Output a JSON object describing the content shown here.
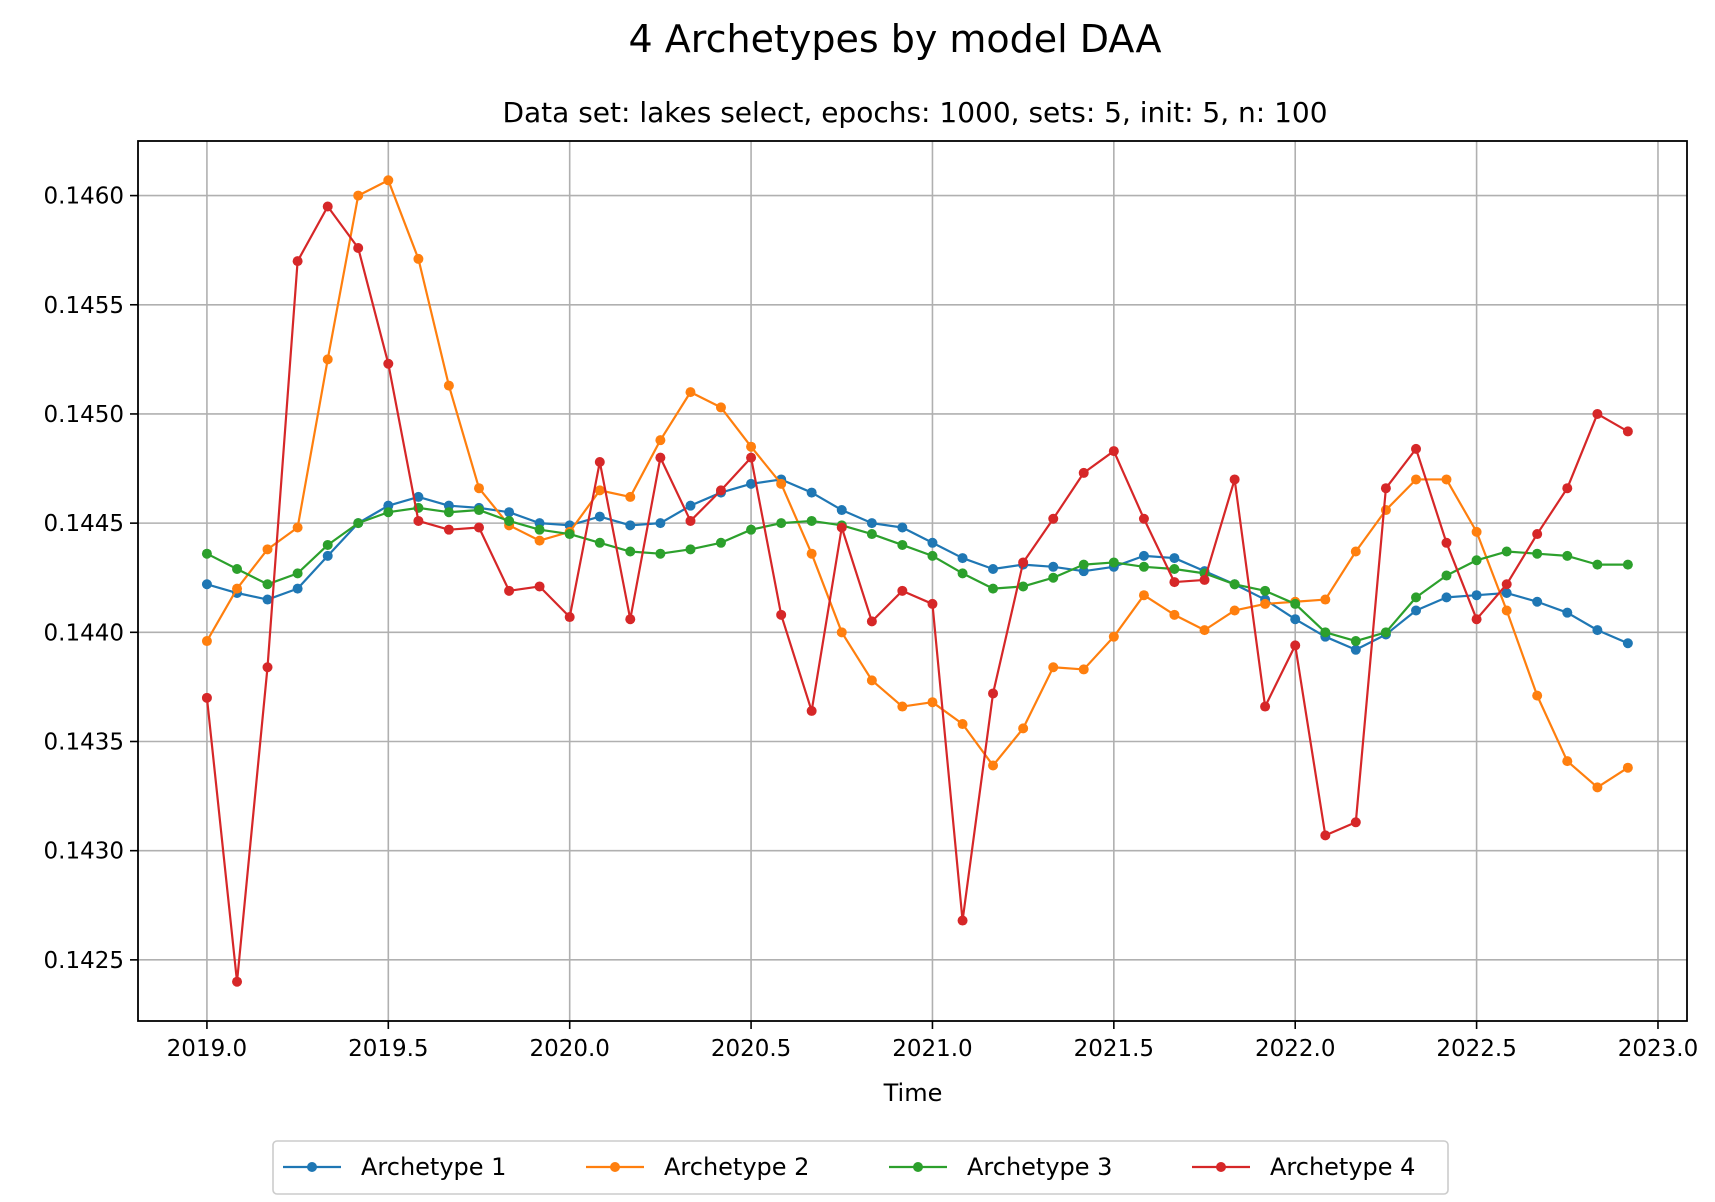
{
  "chart_data": {
    "type": "line",
    "title": "4 Archetypes by model DAA",
    "subtitle": "Data set: lakes select, epochs: 1000, sets: 5, init: 5, n: 100",
    "xlabel": "Time",
    "ylabel": "",
    "xlim": [
      2018.81,
      2023.08
    ],
    "ylim": [
      0.14222,
      0.14625
    ],
    "x_ticks": [
      2019.0,
      2019.5,
      2020.0,
      2020.5,
      2021.0,
      2021.5,
      2022.0,
      2022.5,
      2023.0
    ],
    "x_tick_labels": [
      "2019.0",
      "2019.5",
      "2020.0",
      "2020.5",
      "2021.0",
      "2021.5",
      "2022.0",
      "2022.5",
      "2023.0"
    ],
    "y_ticks": [
      0.1425,
      0.143,
      0.1435,
      0.144,
      0.1445,
      0.145,
      0.1455,
      0.146
    ],
    "y_tick_labels": [
      "0.1425",
      "0.1430",
      "0.1435",
      "0.1440",
      "0.1445",
      "0.1450",
      "0.1455",
      "0.1460"
    ],
    "grid": true,
    "legend_position": "bottom-center",
    "x": [
      2019.0,
      2019.083,
      2019.167,
      2019.25,
      2019.333,
      2019.417,
      2019.5,
      2019.583,
      2019.667,
      2019.75,
      2019.833,
      2019.917,
      2020.0,
      2020.083,
      2020.167,
      2020.25,
      2020.333,
      2020.417,
      2020.5,
      2020.583,
      2020.667,
      2020.75,
      2020.833,
      2020.917,
      2021.0,
      2021.083,
      2021.167,
      2021.25,
      2021.333,
      2021.417,
      2021.5,
      2021.583,
      2021.667,
      2021.75,
      2021.833,
      2021.917,
      2022.0,
      2022.083,
      2022.167,
      2022.25,
      2022.333,
      2022.417,
      2022.5,
      2022.583,
      2022.667,
      2022.75,
      2022.833,
      2022.917
    ],
    "series": [
      {
        "name": "Archetype 1",
        "color": "#1f77b4",
        "values": [
          0.14422,
          0.14418,
          0.14415,
          0.1442,
          0.14435,
          0.1445,
          0.14458,
          0.14462,
          0.14458,
          0.14457,
          0.14455,
          0.1445,
          0.14449,
          0.14453,
          0.14449,
          0.1445,
          0.14458,
          0.14464,
          0.14468,
          0.1447,
          0.14464,
          0.14456,
          0.1445,
          0.14448,
          0.14441,
          0.14434,
          0.14429,
          0.14431,
          0.1443,
          0.14428,
          0.1443,
          0.14435,
          0.14434,
          0.14428,
          0.14422,
          0.14415,
          0.14406,
          0.14398,
          0.14392,
          0.14399,
          0.1441,
          0.14416,
          0.14417,
          0.14418,
          0.14414,
          0.14409,
          0.14401,
          0.14395
        ]
      },
      {
        "name": "Archetype 2",
        "color": "#ff7f0e",
        "values": [
          0.14396,
          0.1442,
          0.14438,
          0.14448,
          0.14525,
          0.146,
          0.14607,
          0.14571,
          0.14513,
          0.14466,
          0.14449,
          0.14442,
          0.14446,
          0.14465,
          0.14462,
          0.14488,
          0.1451,
          0.14503,
          0.14485,
          0.14468,
          0.14436,
          0.144,
          0.14378,
          0.14366,
          0.14368,
          0.14358,
          0.14339,
          0.14356,
          0.14384,
          0.14383,
          0.14398,
          0.14417,
          0.14408,
          0.14401,
          0.1441,
          0.14413,
          0.14414,
          0.14415,
          0.14437,
          0.14456,
          0.1447,
          0.1447,
          0.14446,
          0.1441,
          0.14371,
          0.14341,
          0.14329,
          0.14338
        ]
      },
      {
        "name": "Archetype 3",
        "color": "#2ca02c",
        "values": [
          0.14436,
          0.14429,
          0.14422,
          0.14427,
          0.1444,
          0.1445,
          0.14455,
          0.14457,
          0.14455,
          0.14456,
          0.14451,
          0.14447,
          0.14445,
          0.14441,
          0.14437,
          0.14436,
          0.14438,
          0.14441,
          0.14447,
          0.1445,
          0.14451,
          0.14449,
          0.14445,
          0.1444,
          0.14435,
          0.14427,
          0.1442,
          0.14421,
          0.14425,
          0.14431,
          0.14432,
          0.1443,
          0.14429,
          0.14427,
          0.14422,
          0.14419,
          0.14413,
          0.144,
          0.14396,
          0.144,
          0.14416,
          0.14426,
          0.14433,
          0.14437,
          0.14436,
          0.14435,
          0.14431,
          0.14431
        ]
      },
      {
        "name": "Archetype 4",
        "color": "#d62728",
        "values": [
          0.1437,
          0.1424,
          0.14384,
          0.1457,
          0.14595,
          0.14576,
          0.14523,
          0.14451,
          0.14447,
          0.14448,
          0.14419,
          0.14421,
          0.14407,
          0.14478,
          0.14406,
          0.1448,
          0.14451,
          0.14465,
          0.1448,
          0.14408,
          0.14364,
          0.14448,
          0.14405,
          0.14419,
          0.14413,
          0.14268,
          0.14372,
          0.14432,
          0.14452,
          0.14473,
          0.14483,
          0.14452,
          0.14423,
          0.14424,
          0.1447,
          0.14366,
          0.14394,
          0.14307,
          0.14313,
          0.14466,
          0.14484,
          0.14441,
          0.14406,
          0.14422,
          0.14445,
          0.14466,
          0.145,
          0.14492
        ]
      }
    ]
  }
}
